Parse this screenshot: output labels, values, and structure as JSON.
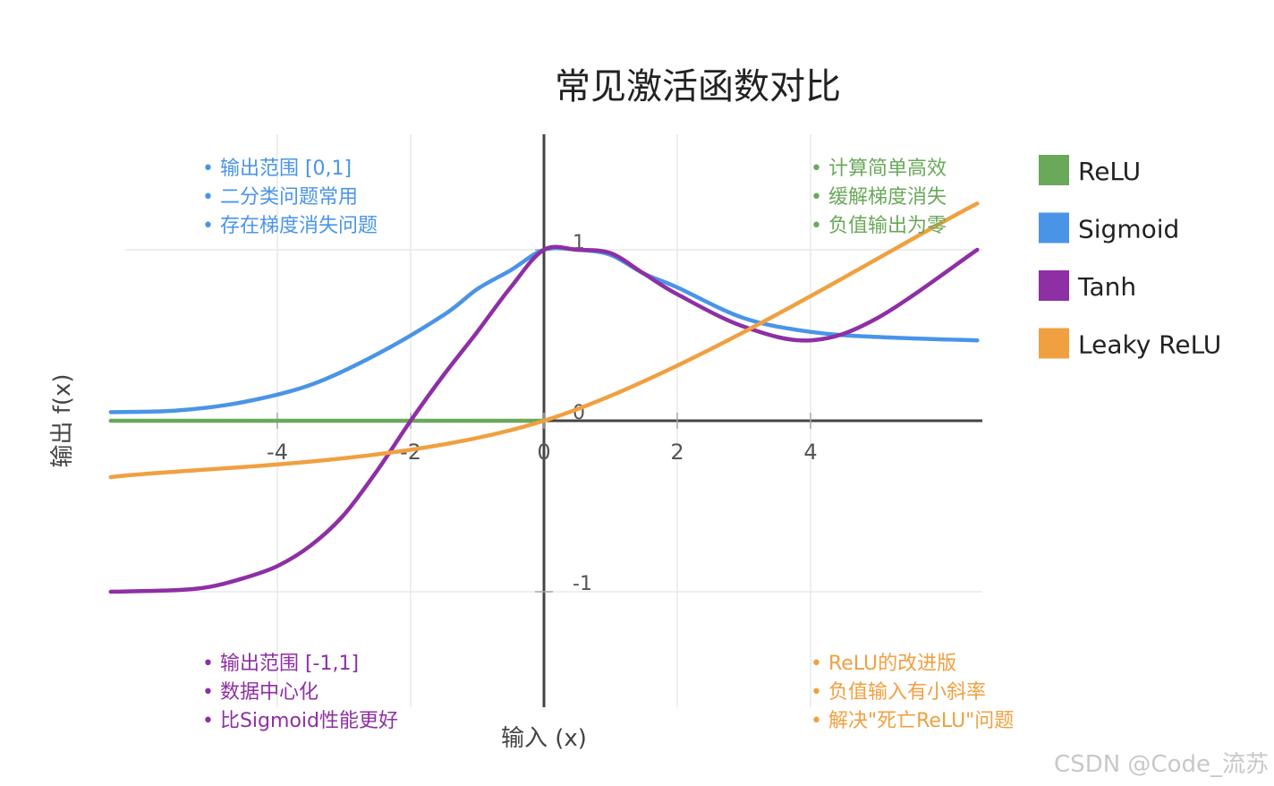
{
  "chart_data": {
    "type": "line",
    "title": "常见激活函数对比",
    "xlabel": "输入 (x)",
    "ylabel": "输出 f(x)",
    "xlim": [
      -6.5,
      6.5
    ],
    "ylim": [
      -1.7,
      1.65
    ],
    "xticks": [
      -4,
      -2,
      0,
      2,
      4
    ],
    "xtick_labels": [
      "-4",
      "-2",
      "0",
      "2",
      "4"
    ],
    "yticks": [
      -1,
      0,
      1
    ],
    "ytick_labels": [
      "-1",
      "0",
      "1"
    ],
    "grid": true,
    "legend_position": "right",
    "series": [
      {
        "name": "ReLU",
        "color": "#6aa85a",
        "x": [
          -6.5,
          0
        ],
        "y": [
          0,
          0
        ]
      },
      {
        "name": "Sigmoid",
        "color": "#4a94e8",
        "x": [
          -6.5,
          -5.5,
          -4.5,
          -3.5,
          -2.5,
          -1.5,
          -1,
          -0.5,
          0,
          0.5,
          1,
          1.5,
          2,
          3,
          4,
          5,
          6.5
        ],
        "y": [
          0.05,
          0.06,
          0.11,
          0.21,
          0.39,
          0.62,
          0.77,
          0.88,
          1.0,
          1.0,
          0.97,
          0.86,
          0.78,
          0.6,
          0.52,
          0.49,
          0.47
        ]
      },
      {
        "name": "Tanh",
        "color": "#8e2fa4",
        "x": [
          -6.5,
          -5.5,
          -5,
          -4.5,
          -4,
          -3.5,
          -3,
          -2.5,
          -2,
          -1.5,
          -1,
          -0.5,
          0,
          0.5,
          1,
          1.5,
          2,
          3,
          4,
          5,
          6.5
        ],
        "y": [
          -1.0,
          -0.99,
          -0.97,
          -0.92,
          -0.85,
          -0.73,
          -0.55,
          -0.29,
          0.0,
          0.27,
          0.52,
          0.78,
          1.0,
          1.0,
          0.98,
          0.86,
          0.74,
          0.55,
          0.47,
          0.6,
          1.0
        ]
      },
      {
        "name": "Leaky ReLU",
        "color": "#f0a040",
        "x": [
          -6.5,
          0,
          6.5
        ],
        "y": [
          -0.33,
          0,
          1.27
        ]
      }
    ],
    "annotations": [
      {
        "color": "#4a94e8",
        "position": "top-left",
        "lines": [
          "• 输出范围 [0,1]",
          "• 二分类问题常用",
          "• 存在梯度消失问题"
        ]
      },
      {
        "color": "#6aa85a",
        "position": "top-right",
        "lines": [
          "• 计算简单高效",
          "• 缓解梯度消失",
          "• 负值输出为零"
        ]
      },
      {
        "color": "#8e2fa4",
        "position": "bottom-left",
        "lines": [
          "• 输出范围 [-1,1]",
          "• 数据中心化",
          "• 比Sigmoid性能更好"
        ]
      },
      {
        "color": "#f0a040",
        "position": "bottom-right",
        "lines": [
          "• ReLU的改进版",
          "• 负值输入有小斜率",
          "• 解决\"死亡ReLU\"问题"
        ]
      }
    ]
  },
  "watermark": "CSDN @Code_流苏"
}
